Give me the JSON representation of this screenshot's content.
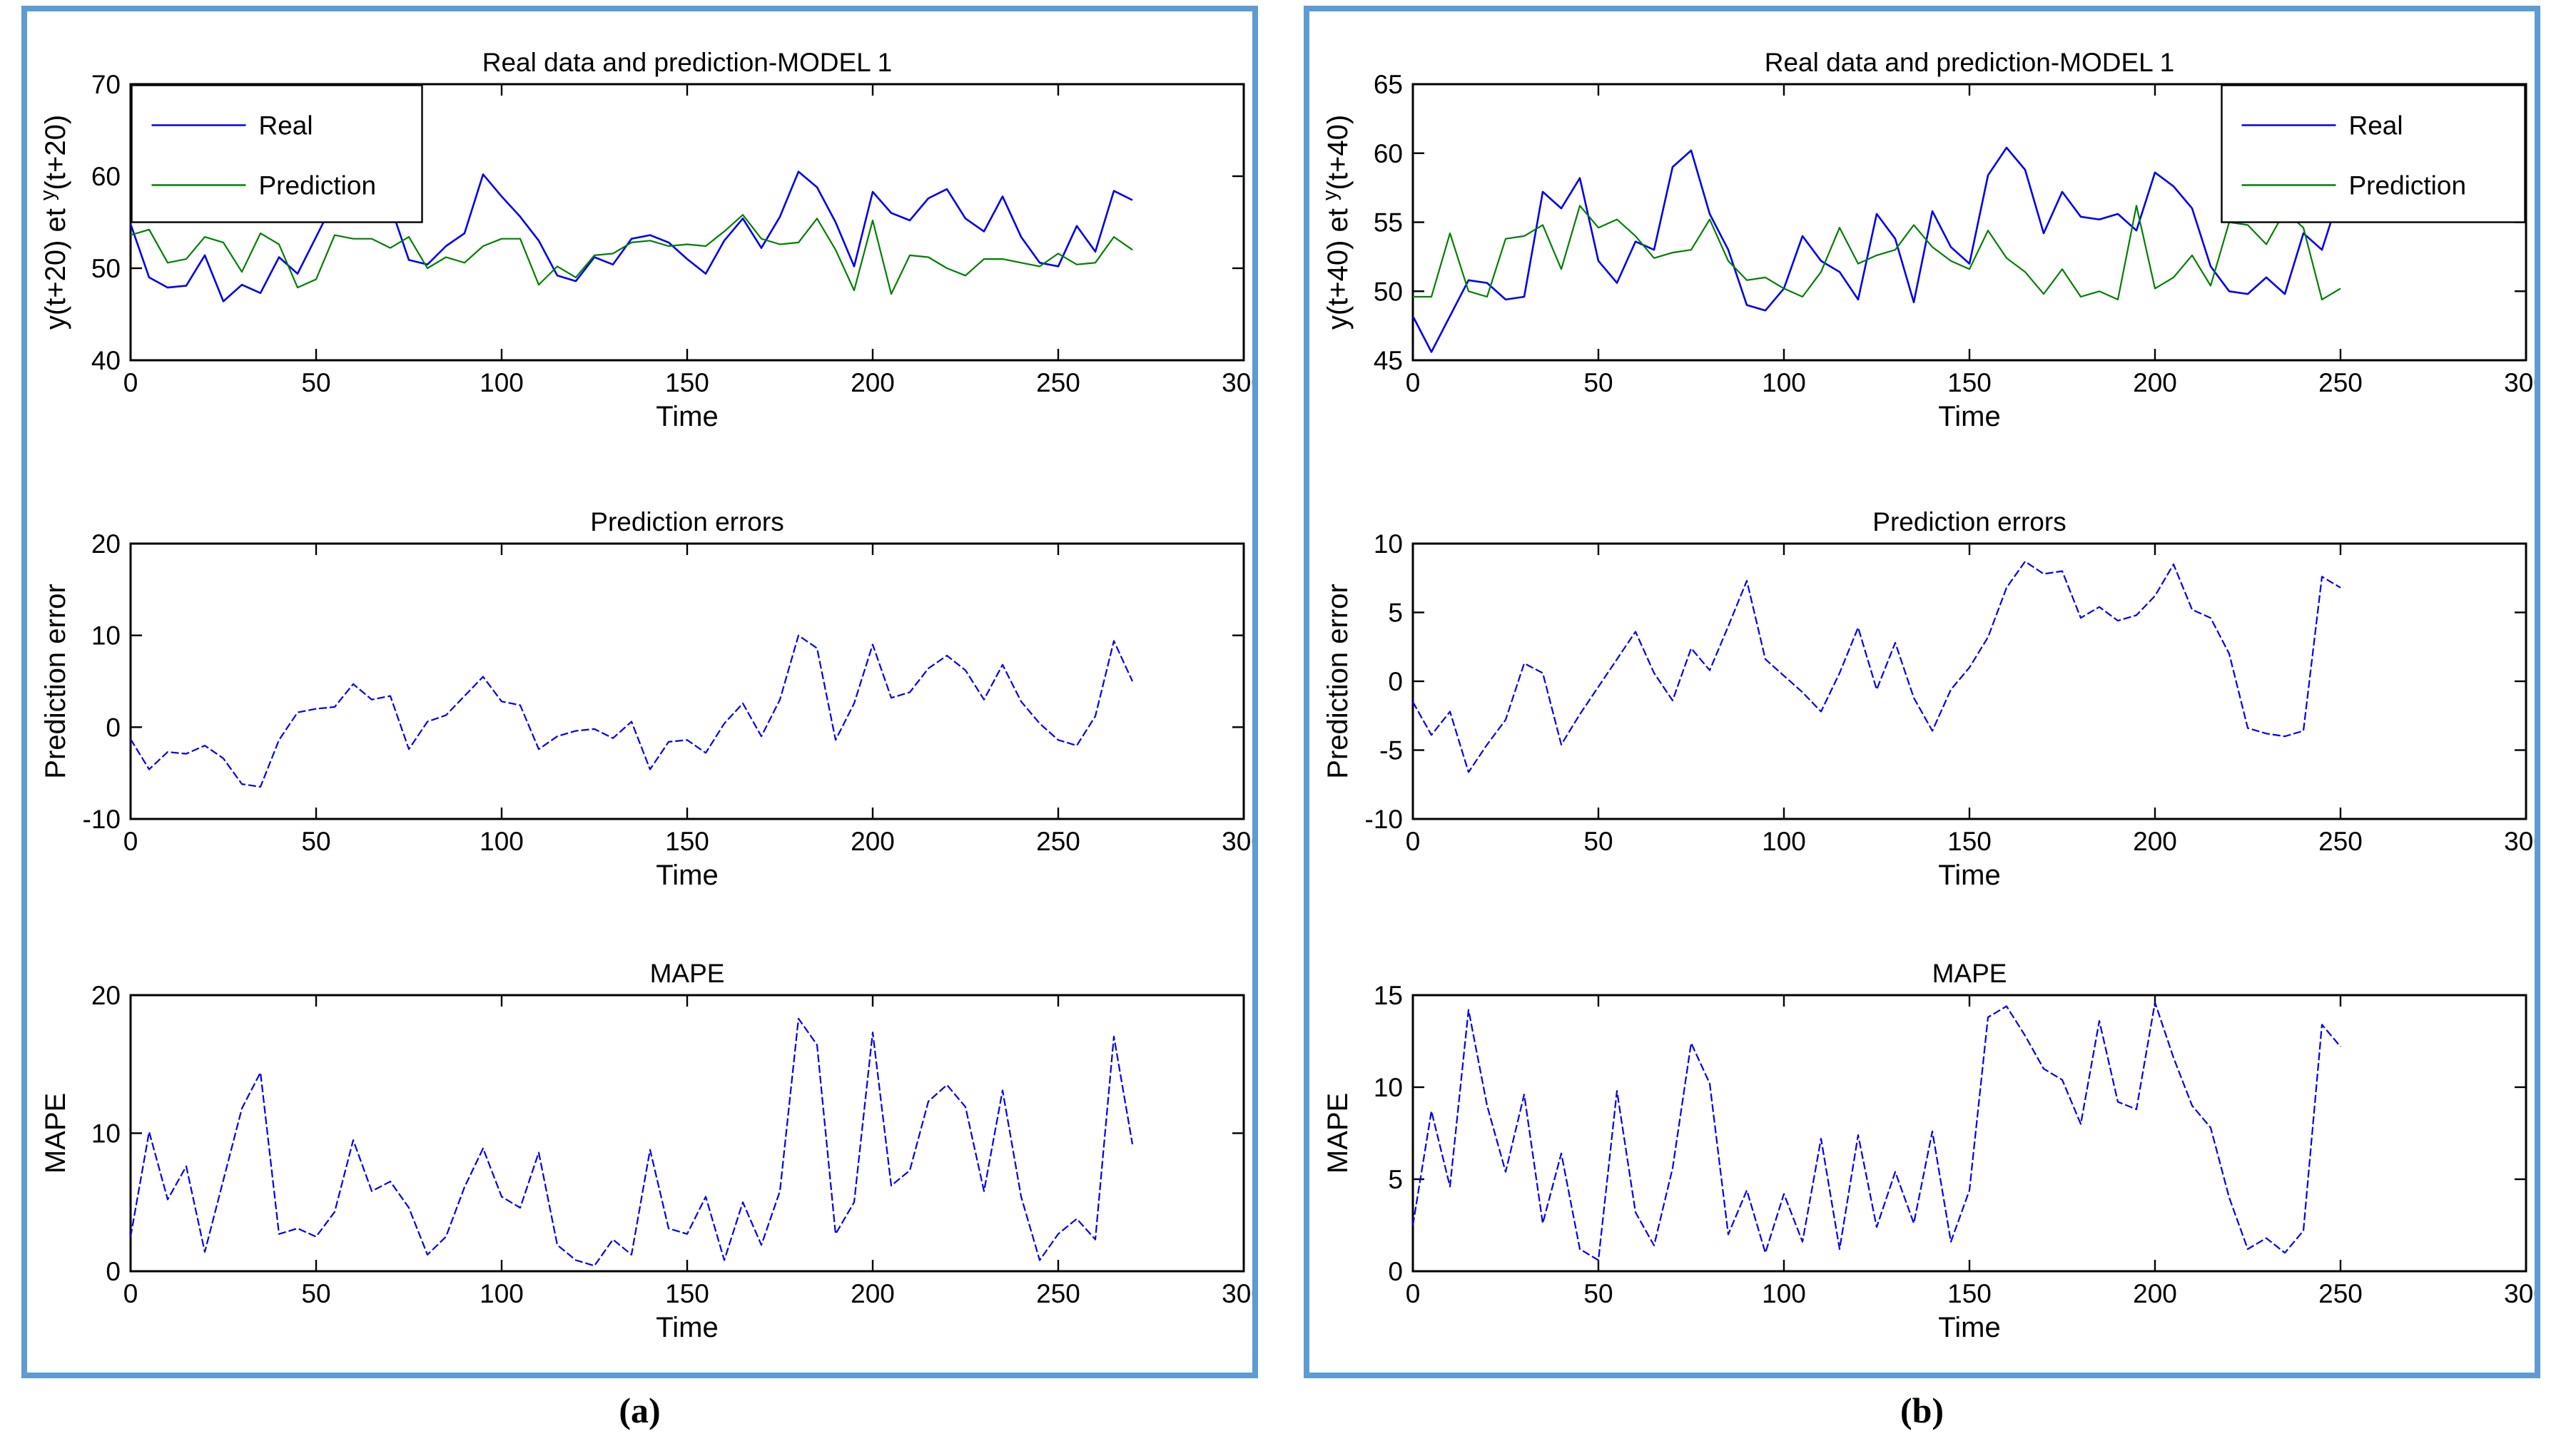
{
  "captions": {
    "a": "(a)",
    "b": "(b)"
  },
  "styles": {
    "panel_border_color": "#5e9bd3",
    "axis_color": "#000000",
    "real_color": "#0000ee",
    "prediction_color": "#007f00",
    "error_line_color": "#0000ee"
  },
  "chart_data": [
    {
      "panel": "a",
      "slot": "top",
      "type": "line",
      "title": "Real data and prediction-MODEL 1",
      "xlabel": "Time",
      "ylabel": "y(t+20) et ʸ(t+20)",
      "ylabel_parts": {
        "pre": "y(t+20) et ",
        "sup": "y",
        "post": "(t+20)"
      },
      "xlim": [
        0,
        300
      ],
      "ylim": [
        40,
        70
      ],
      "xticks": [
        0,
        50,
        100,
        150,
        200,
        250,
        300
      ],
      "yticks": [
        40,
        50,
        60,
        70
      ],
      "grid": false,
      "legend": {
        "position": "top-left",
        "entries": [
          {
            "label": "Real",
            "color": "#0000ee"
          },
          {
            "label": "Prediction",
            "color": "#007f00"
          }
        ]
      },
      "x_step": 5,
      "series": [
        {
          "name": "Real",
          "color": "#0000ee",
          "dash": "",
          "width": 2.6,
          "values": [
            54.8,
            49.0,
            47.9,
            48.1,
            51.4,
            46.4,
            48.2,
            47.3,
            51.2,
            49.4,
            53.4,
            57.4,
            55.6,
            58.0,
            56.8,
            50.9,
            50.4,
            52.4,
            53.8,
            60.2,
            57.8,
            55.6,
            53.0,
            49.2,
            48.6,
            51.2,
            50.4,
            53.2,
            53.6,
            52.8,
            51.0,
            49.4,
            53.0,
            55.4,
            52.2,
            55.6,
            60.5,
            58.8,
            55.0,
            50.2,
            58.3,
            56.0,
            55.2,
            57.6,
            58.6,
            55.4,
            54.0,
            57.8,
            53.4,
            50.6,
            50.2,
            54.6,
            51.8,
            58.4,
            57.4
          ]
        },
        {
          "name": "Prediction",
          "color": "#007f00",
          "dash": "",
          "width": 2.2,
          "values": [
            53.6,
            54.2,
            50.6,
            51.0,
            53.4,
            52.8,
            49.6,
            53.8,
            52.6,
            47.9,
            48.8,
            53.6,
            53.2,
            53.2,
            52.2,
            53.4,
            50.0,
            51.2,
            50.6,
            52.4,
            53.2,
            53.2,
            48.2,
            50.2,
            49.0,
            51.4,
            51.6,
            52.8,
            53.0,
            52.4,
            52.6,
            52.4,
            54.0,
            55.8,
            53.2,
            52.6,
            52.8,
            55.4,
            52.0,
            47.6,
            55.2,
            47.2,
            51.4,
            51.2,
            50.0,
            49.2,
            51.0,
            51.0,
            50.6,
            50.2,
            51.6,
            50.4,
            50.6,
            53.4,
            52.0
          ]
        }
      ]
    },
    {
      "panel": "a",
      "slot": "middle",
      "type": "line",
      "title": "Prediction errors",
      "xlabel": "Time",
      "ylabel": "Prediction error",
      "xlim": [
        0,
        300
      ],
      "ylim": [
        -10,
        20
      ],
      "xticks": [
        0,
        50,
        100,
        150,
        200,
        250,
        300
      ],
      "yticks": [
        -10,
        0,
        10,
        20
      ],
      "grid": false,
      "x_step": 5,
      "series": [
        {
          "name": "Prediction error",
          "color": "#0000ee",
          "dash": "11 4",
          "width": 2.2,
          "values": [
            -1.3,
            -4.6,
            -2.7,
            -2.9,
            -2.0,
            -3.4,
            -6.2,
            -6.5,
            -1.4,
            1.6,
            2.0,
            2.2,
            4.7,
            3.0,
            3.4,
            -2.4,
            0.6,
            1.3,
            3.4,
            5.5,
            2.8,
            2.4,
            -2.4,
            -1.0,
            -0.4,
            -0.2,
            -1.2,
            0.6,
            -4.6,
            -1.6,
            -1.4,
            -2.8,
            0.4,
            2.6,
            -1.0,
            3.0,
            10.0,
            8.6,
            -1.4,
            2.6,
            9.0,
            3.2,
            3.8,
            6.4,
            7.8,
            6.2,
            3.0,
            6.8,
            2.8,
            0.4,
            -1.4,
            -2.0,
            1.2,
            9.4,
            5.0
          ]
        }
      ]
    },
    {
      "panel": "a",
      "slot": "bottom",
      "type": "line",
      "title": "MAPE",
      "xlabel": "Time",
      "ylabel": "MAPE",
      "xlim": [
        0,
        300
      ],
      "ylim": [
        0,
        20
      ],
      "xticks": [
        0,
        50,
        100,
        150,
        200,
        250,
        300
      ],
      "yticks": [
        0,
        10,
        20
      ],
      "grid": false,
      "x_step": 5,
      "series": [
        {
          "name": "MAPE",
          "color": "#0000ee",
          "dash": "11 4",
          "width": 2.2,
          "values": [
            2.5,
            10.1,
            5.2,
            7.6,
            1.4,
            6.6,
            11.8,
            14.4,
            2.7,
            3.1,
            2.5,
            4.3,
            9.5,
            5.8,
            6.5,
            4.6,
            1.2,
            2.5,
            6.1,
            8.9,
            5.4,
            4.6,
            8.6,
            1.9,
            0.8,
            0.4,
            2.3,
            1.2,
            8.8,
            3.1,
            2.7,
            5.4,
            0.8,
            5.0,
            1.9,
            5.8,
            18.3,
            16.4,
            2.7,
            5.0,
            17.3,
            6.2,
            7.3,
            12.3,
            13.5,
            11.9,
            5.8,
            13.1,
            5.4,
            0.8,
            2.7,
            3.8,
            2.3,
            17.0,
            9.2
          ]
        }
      ]
    },
    {
      "panel": "b",
      "slot": "top",
      "type": "line",
      "title": "Real data and prediction-MODEL 1",
      "xlabel": "Time",
      "ylabel": "y(t+40) et ʸ(t+40)",
      "ylabel_parts": {
        "pre": "y(t+40) et ",
        "sup": "y",
        "post": "(t+40)"
      },
      "xlim": [
        0,
        300
      ],
      "ylim": [
        45,
        65
      ],
      "xticks": [
        0,
        50,
        100,
        150,
        200,
        250,
        300
      ],
      "yticks": [
        45,
        50,
        55,
        60,
        65
      ],
      "grid": false,
      "legend": {
        "position": "top-right",
        "entries": [
          {
            "label": "Real",
            "color": "#0000ee"
          },
          {
            "label": "Prediction",
            "color": "#007f00"
          }
        ]
      },
      "x_step": 5,
      "series": [
        {
          "name": "Real",
          "color": "#0000ee",
          "dash": "",
          "width": 2.6,
          "values": [
            48.2,
            45.6,
            48.2,
            50.8,
            50.6,
            49.4,
            49.6,
            57.2,
            56.0,
            58.2,
            52.2,
            50.6,
            53.6,
            53.0,
            59.0,
            60.2,
            55.6,
            53.0,
            49.0,
            48.6,
            50.2,
            54.0,
            52.2,
            51.4,
            49.4,
            55.6,
            53.8,
            49.2,
            55.8,
            53.2,
            52.0,
            58.4,
            60.4,
            58.8,
            54.2,
            57.2,
            55.4,
            55.2,
            55.6,
            54.4,
            58.6,
            57.6,
            56.0,
            51.8,
            50.0,
            49.8,
            51.0,
            49.8,
            54.2,
            53.0,
            57.2
          ]
        },
        {
          "name": "Prediction",
          "color": "#007f00",
          "dash": "",
          "width": 2.2,
          "values": [
            49.6,
            49.6,
            54.2,
            50.0,
            49.6,
            53.8,
            54.0,
            54.8,
            51.6,
            56.2,
            54.6,
            55.2,
            54.0,
            52.4,
            52.8,
            53.0,
            55.2,
            52.2,
            50.8,
            51.0,
            50.2,
            49.6,
            51.4,
            54.6,
            52.0,
            52.6,
            53.0,
            54.8,
            53.2,
            52.2,
            51.6,
            54.4,
            52.4,
            51.4,
            49.8,
            51.6,
            49.6,
            50.0,
            49.4,
            56.2,
            50.2,
            51.0,
            52.6,
            50.4,
            55.0,
            54.8,
            53.4,
            55.8,
            54.6,
            49.4,
            50.2
          ]
        }
      ]
    },
    {
      "panel": "b",
      "slot": "middle",
      "type": "line",
      "title": "Prediction errors",
      "xlabel": "Time",
      "ylabel": "Prediction error",
      "xlim": [
        0,
        300
      ],
      "ylim": [
        -10,
        10
      ],
      "xticks": [
        0,
        50,
        100,
        150,
        200,
        250,
        300
      ],
      "yticks": [
        -10,
        -5,
        0,
        5,
        10
      ],
      "grid": false,
      "x_step": 5,
      "series": [
        {
          "name": "Prediction error",
          "color": "#0000ee",
          "dash": "11 4",
          "width": 2.2,
          "values": [
            -1.5,
            -3.9,
            -2.2,
            -6.6,
            -4.6,
            -2.8,
            1.3,
            0.6,
            -4.6,
            -2.4,
            -0.4,
            1.6,
            3.6,
            0.6,
            -1.4,
            2.4,
            0.8,
            4.0,
            7.3,
            1.6,
            0.4,
            -0.8,
            -2.2,
            0.6,
            3.9,
            -0.6,
            2.8,
            -1.2,
            -3.6,
            -0.6,
            1.0,
            3.2,
            6.8,
            8.7,
            7.8,
            8.0,
            4.6,
            5.4,
            4.4,
            4.8,
            6.2,
            8.5,
            5.2,
            4.6,
            2.0,
            -3.4,
            -3.8,
            -4.0,
            -3.6,
            7.6,
            6.8
          ]
        }
      ]
    },
    {
      "panel": "b",
      "slot": "bottom",
      "type": "line",
      "title": "MAPE",
      "xlabel": "Time",
      "ylabel": "MAPE",
      "xlim": [
        0,
        300
      ],
      "ylim": [
        0,
        15
      ],
      "xticks": [
        0,
        50,
        100,
        150,
        200,
        250,
        300
      ],
      "yticks": [
        0,
        5,
        10,
        15
      ],
      "grid": false,
      "x_step": 5,
      "series": [
        {
          "name": "MAPE",
          "color": "#0000ee",
          "dash": "11 4",
          "width": 2.2,
          "values": [
            2.5,
            8.7,
            4.6,
            14.2,
            9.0,
            5.4,
            9.6,
            2.6,
            6.4,
            1.2,
            0.6,
            9.8,
            3.2,
            1.4,
            5.6,
            12.4,
            10.2,
            2.0,
            4.4,
            1.0,
            4.2,
            1.6,
            7.2,
            1.2,
            7.4,
            2.4,
            5.4,
            2.6,
            7.6,
            1.6,
            4.4,
            13.8,
            14.4,
            12.8,
            11.0,
            10.4,
            8.0,
            13.6,
            9.2,
            8.8,
            14.6,
            11.6,
            9.0,
            7.8,
            4.0,
            1.2,
            1.8,
            1.0,
            2.2,
            13.4,
            12.2
          ]
        }
      ]
    }
  ]
}
